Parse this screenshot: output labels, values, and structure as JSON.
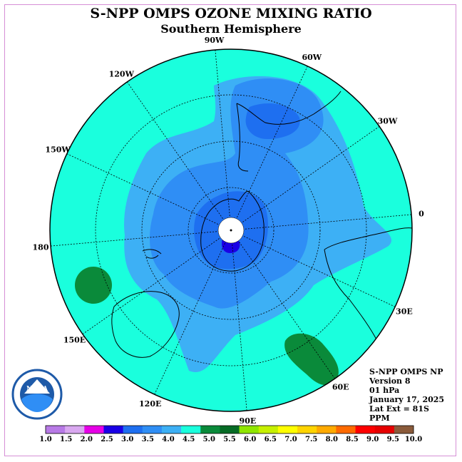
{
  "title": "S-NPP OMPS OZONE MIXING RATIO",
  "subtitle": "Southern Hemisphere",
  "info": {
    "product": "S-NPP OMPS NP",
    "version": "Version 8",
    "pressure": "01 hPa",
    "date": "January 17, 2025",
    "lat_ext": "Lat Ext = 81S",
    "units": "PPM"
  },
  "longitude_labels": [
    "90W",
    "60W",
    "30W",
    "0",
    "30E",
    "60E",
    "90E",
    "120E",
    "150E",
    "180",
    "150W",
    "120W"
  ],
  "colorbar": {
    "ticks": [
      "1.0",
      "1.5",
      "2.0",
      "2.5",
      "3.0",
      "3.5",
      "4.0",
      "4.5",
      "5.0",
      "5.5",
      "6.0",
      "6.5",
      "7.0",
      "7.5",
      "8.0",
      "8.5",
      "9.0",
      "9.5",
      "10.0"
    ],
    "colors": [
      "#b87ae6",
      "#d9a8f0",
      "#e600e6",
      "#1a00e6",
      "#1e6ff0",
      "#2f8ef5",
      "#3db0f5",
      "#1affdd",
      "#0a8a3a",
      "#066b25",
      "#8fe600",
      "#c6f000",
      "#ffff00",
      "#ffd400",
      "#ffaa00",
      "#ff6a00",
      "#ff0000",
      "#e60000",
      "#8a5a3a"
    ]
  },
  "logo_text": "NOAA",
  "map_colors": {
    "outer_field": "#1affdd",
    "level_3_5": "#3db0f5",
    "level_4_0": "#2f8ef5",
    "level_3_0": "#1e6ff0",
    "low_core": "#1a00e6",
    "high_patch": "#0a8a3a"
  }
}
